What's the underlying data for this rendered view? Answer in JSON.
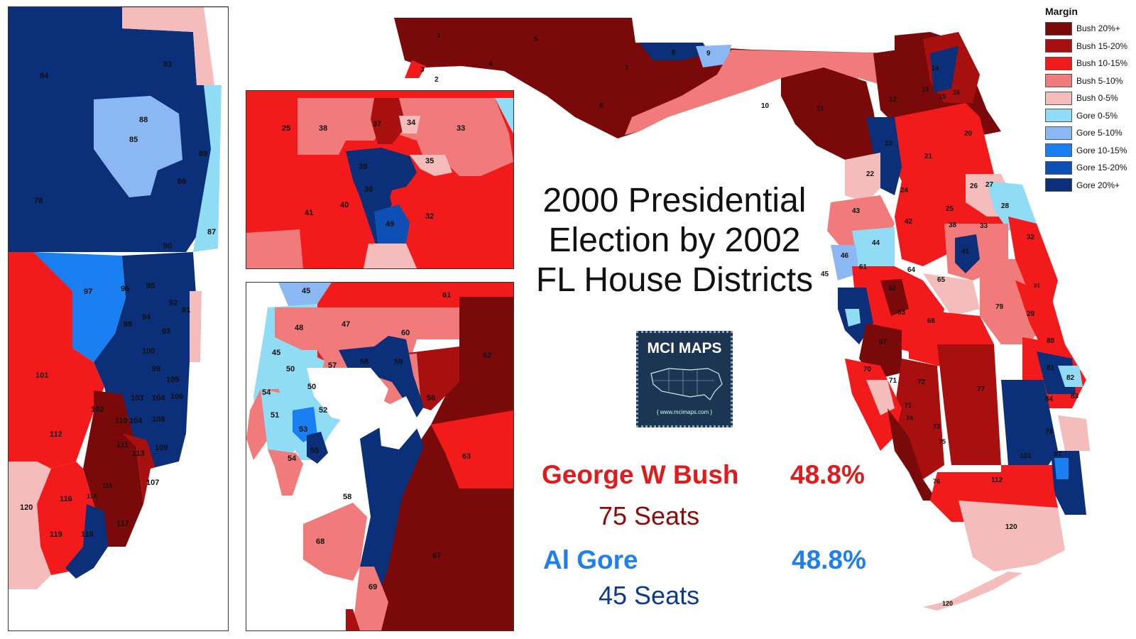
{
  "title": [
    "2000 Presidential",
    "Election by 2002",
    "FL House Districts"
  ],
  "logo": {
    "text": "MCI MAPS",
    "url": "{ www.mcimaps.com }"
  },
  "results": {
    "bush": {
      "name": "George W Bush",
      "pct": "48.8%",
      "seats": "75 Seats"
    },
    "gore": {
      "name": "Al Gore",
      "pct": "48.8%",
      "seats": "45 Seats"
    }
  },
  "legend": {
    "title": "Margin",
    "items": [
      {
        "label": "Bush 20%+",
        "color": "#7a0a0a"
      },
      {
        "label": "Bush 15-20%",
        "color": "#a80f0f"
      },
      {
        "label": "Bush 10-15%",
        "color": "#f21a1a"
      },
      {
        "label": "Bush 5-10%",
        "color": "#f17a7a"
      },
      {
        "label": "Bush 0-5%",
        "color": "#f5bcbc"
      },
      {
        "label": "Gore 0-5%",
        "color": "#8fdcf4"
      },
      {
        "label": "Gore 5-10%",
        "color": "#8bb8f2"
      },
      {
        "label": "Gore 10-15%",
        "color": "#1a7ff0"
      },
      {
        "label": "Gore 15-20%",
        "color": "#0e4fb5"
      },
      {
        "label": "Gore 20%+",
        "color": "#0b2f78"
      }
    ]
  },
  "inset_se_labels": [
    "83",
    "84",
    "88",
    "85",
    "89",
    "86",
    "78",
    "87",
    "90",
    "97",
    "96",
    "95",
    "92",
    "91",
    "94",
    "98",
    "93",
    "100",
    "99",
    "105",
    "101",
    "103",
    "104",
    "106",
    "102",
    "110",
    "104",
    "108",
    "112",
    "111",
    "113",
    "109",
    "115",
    "114",
    "116",
    "107",
    "120",
    "118",
    "117",
    "119"
  ],
  "inset_orl_labels": [
    "25",
    "38",
    "37",
    "34",
    "33",
    "35",
    "39",
    "36",
    "40",
    "41",
    "49",
    "32"
  ],
  "inset_tb_labels": [
    "45",
    "61",
    "48",
    "47",
    "60",
    "62",
    "45",
    "57",
    "58",
    "59",
    "50",
    "50",
    "54",
    "56",
    "51",
    "52",
    "53",
    "55",
    "54",
    "63",
    "58",
    "68",
    "67",
    "69"
  ],
  "main_labels": [
    "1",
    "5",
    "3",
    "4",
    "2",
    "8",
    "9",
    "7",
    "6",
    "10",
    "11",
    "14",
    "13",
    "12",
    "15",
    "16",
    "20",
    "23",
    "21",
    "22",
    "24",
    "26",
    "27",
    "43",
    "28",
    "42",
    "25",
    "33",
    "38",
    "44",
    "46",
    "32",
    "45",
    "61",
    "64",
    "65",
    "31",
    "62",
    "41",
    "79",
    "29",
    "63",
    "66",
    "67",
    "80",
    "81",
    "70",
    "71",
    "82",
    "72",
    "77",
    "84",
    "83",
    "71",
    "74",
    "73",
    "78",
    "75",
    "97",
    "101",
    "76",
    "112",
    "120",
    "120"
  ]
}
